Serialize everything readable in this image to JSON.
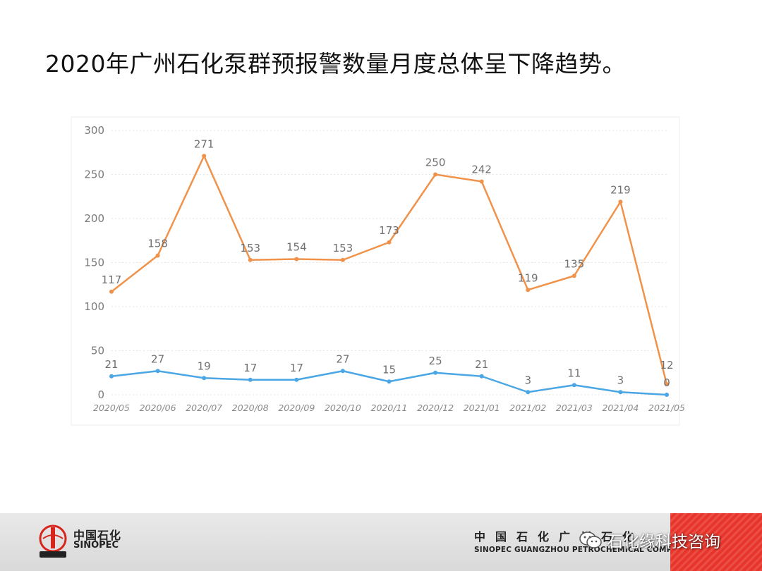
{
  "slide": {
    "title": "2020年广州石化泵群预报警数量月度总体呈下降趋势。"
  },
  "footer": {
    "brand_cn": "中国石化",
    "brand_en": "SINOPEC",
    "company_cn": "中国石化广州石化",
    "company_en": "SINOPEC GUANGZHOU PETROCHEMICAL COMPANY",
    "watermark": "石化缘科技咨询",
    "logo_icon": "sinopec-logo-icon",
    "watermark_icon": "wechat-icon"
  },
  "chart_data": {
    "type": "line",
    "title": "",
    "xlabel": "",
    "ylabel": "",
    "ylim": [
      0,
      300
    ],
    "yticks": [
      "0",
      "50",
      "100",
      "150",
      "200",
      "250",
      "300"
    ],
    "grid": true,
    "legend": "none",
    "categories": [
      "2020/05",
      "2020/06",
      "2020/07",
      "2020/08",
      "2020/09",
      "2020/10",
      "2020/11",
      "2020/12",
      "2021/01",
      "2021/02",
      "2021/03",
      "2021/04",
      "2021/05"
    ],
    "series": [
      {
        "color": "#f0924a",
        "values": [
          117,
          158,
          271,
          153,
          154,
          153,
          173,
          250,
          242,
          119,
          135,
          219,
          12
        ]
      },
      {
        "color": "#4aa6e4",
        "values": [
          21,
          27,
          19,
          17,
          17,
          27,
          15,
          25,
          21,
          3,
          11,
          3,
          0
        ]
      }
    ]
  }
}
